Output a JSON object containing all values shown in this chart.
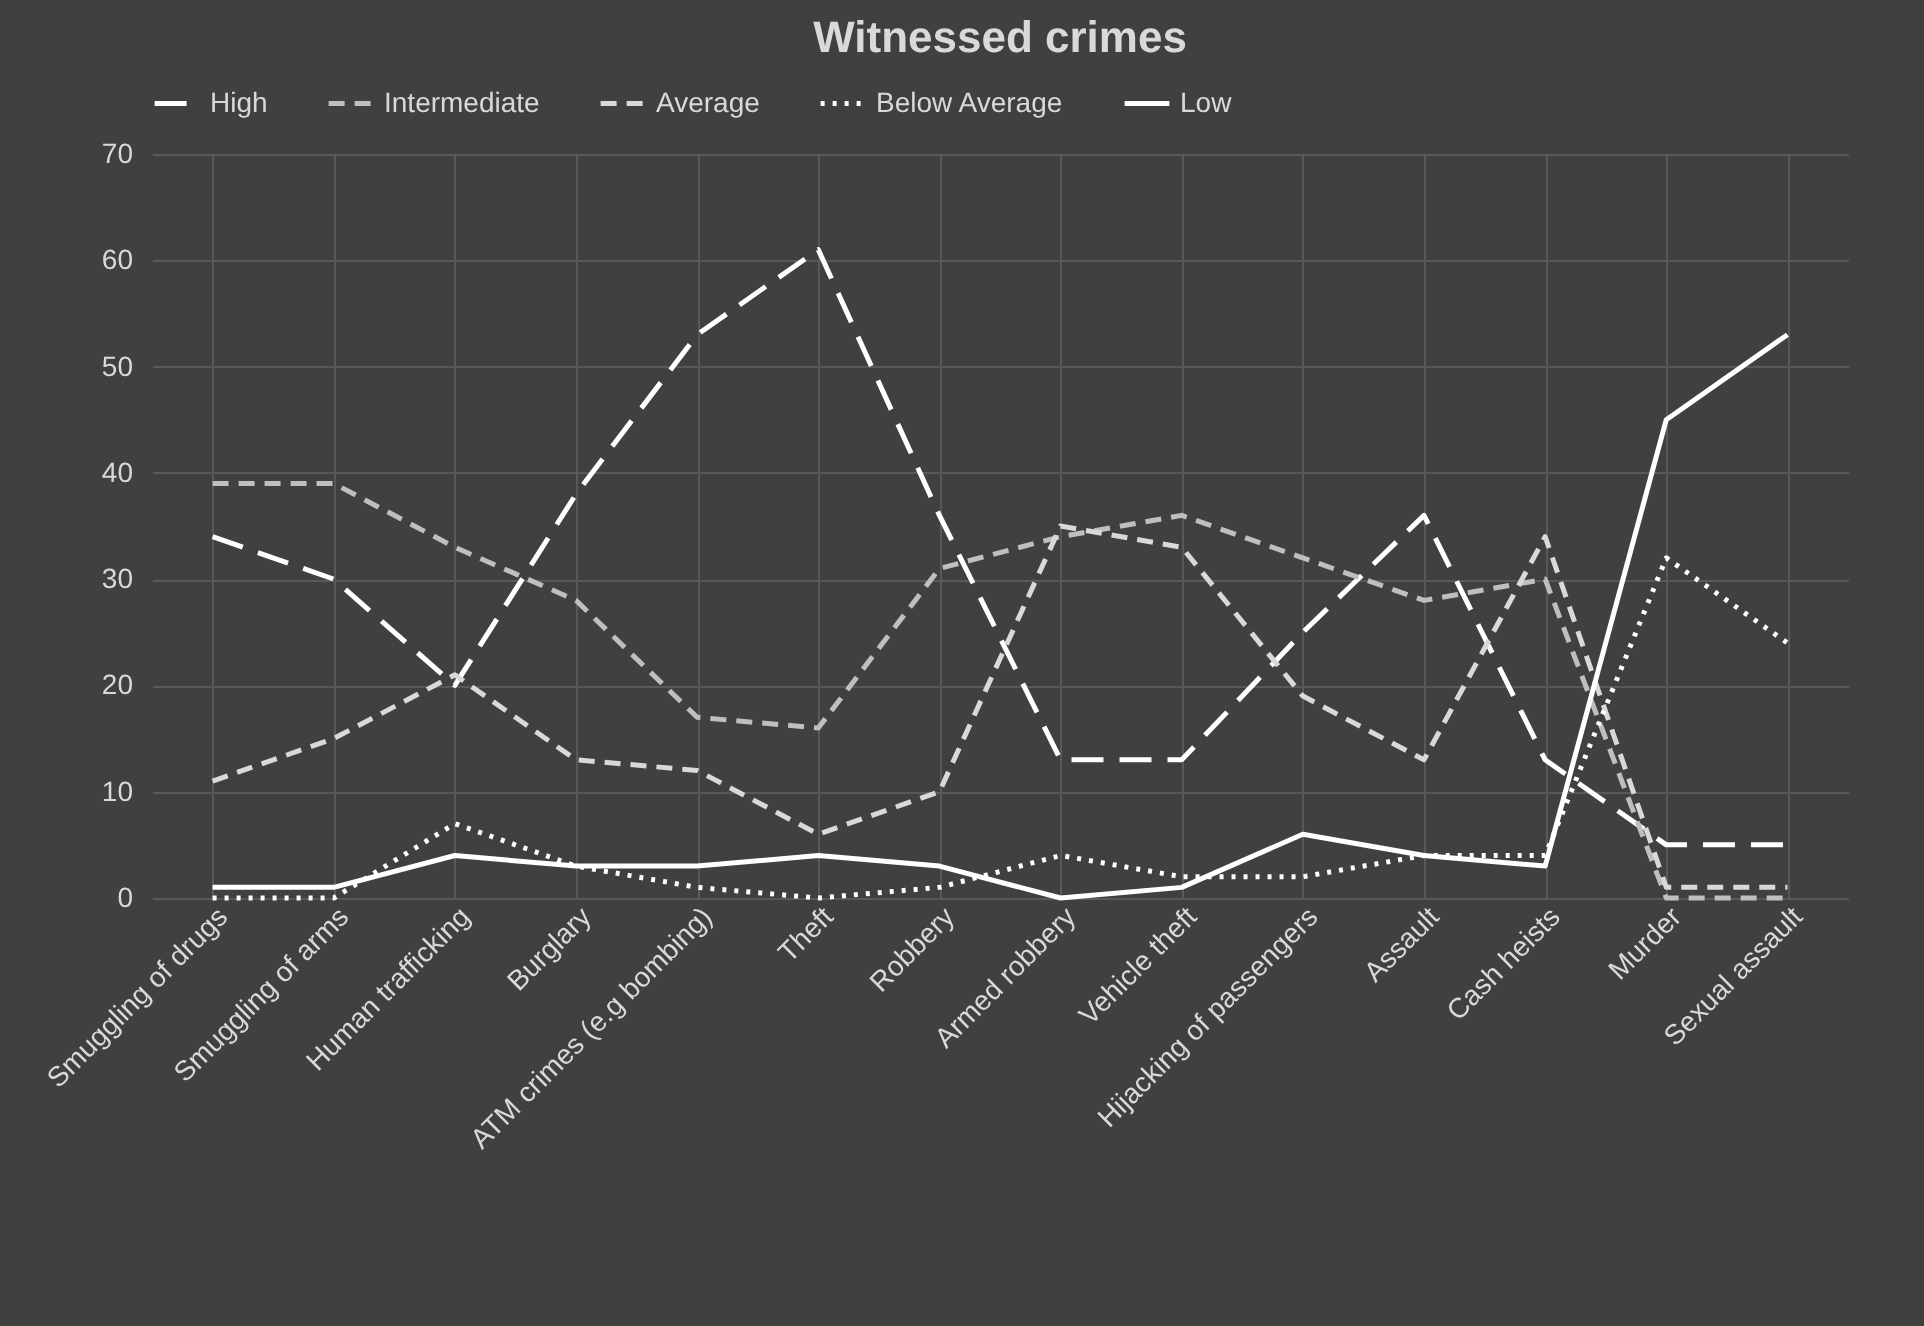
{
  "chart_data": {
    "type": "line",
    "title": "Witnessed crimes",
    "categories": [
      "Smuggling of drugs",
      "Smuggling of arms",
      "Human trafficking",
      "Burglary",
      "ATM crimes (e.g bombing)",
      "Theft",
      "Robbery",
      "Armed robbery",
      "Vehicle theft",
      "Hijacking of passengers",
      "Assault",
      "Cash heists",
      "Murder",
      "Sexual assault"
    ],
    "series": [
      {
        "name": "High",
        "color": "#ffffff",
        "line_style": "dashed",
        "values": [
          34,
          30,
          20,
          38,
          53,
          61,
          36,
          13,
          13,
          25,
          36,
          13,
          5,
          5
        ]
      },
      {
        "name": "Intermediate",
        "color": "#bfbfbf",
        "line_style": "dashed",
        "values": [
          39,
          39,
          33,
          28,
          17,
          16,
          31,
          34,
          36,
          32,
          28,
          30,
          0,
          0
        ]
      },
      {
        "name": "Average",
        "color": "#d9d9d9",
        "line_style": "dashed",
        "values": [
          11,
          15,
          21,
          13,
          12,
          6,
          10,
          35,
          33,
          19,
          13,
          34,
          1,
          1
        ]
      },
      {
        "name": "Below Average",
        "color": "#ffffff",
        "line_style": "dotted",
        "values": [
          0,
          0,
          7,
          3,
          1,
          0,
          1,
          4,
          2,
          2,
          4,
          4,
          32,
          24
        ]
      },
      {
        "name": "Low",
        "color": "#ffffff",
        "line_style": "solid",
        "values": [
          1,
          1,
          4,
          3,
          3,
          4,
          3,
          0,
          1,
          6,
          4,
          3,
          45,
          53
        ]
      }
    ],
    "ylim": [
      0,
      70
    ],
    "yticks": [
      0,
      10,
      20,
      30,
      40,
      50,
      60,
      70
    ],
    "grid": true,
    "legend": "top"
  }
}
